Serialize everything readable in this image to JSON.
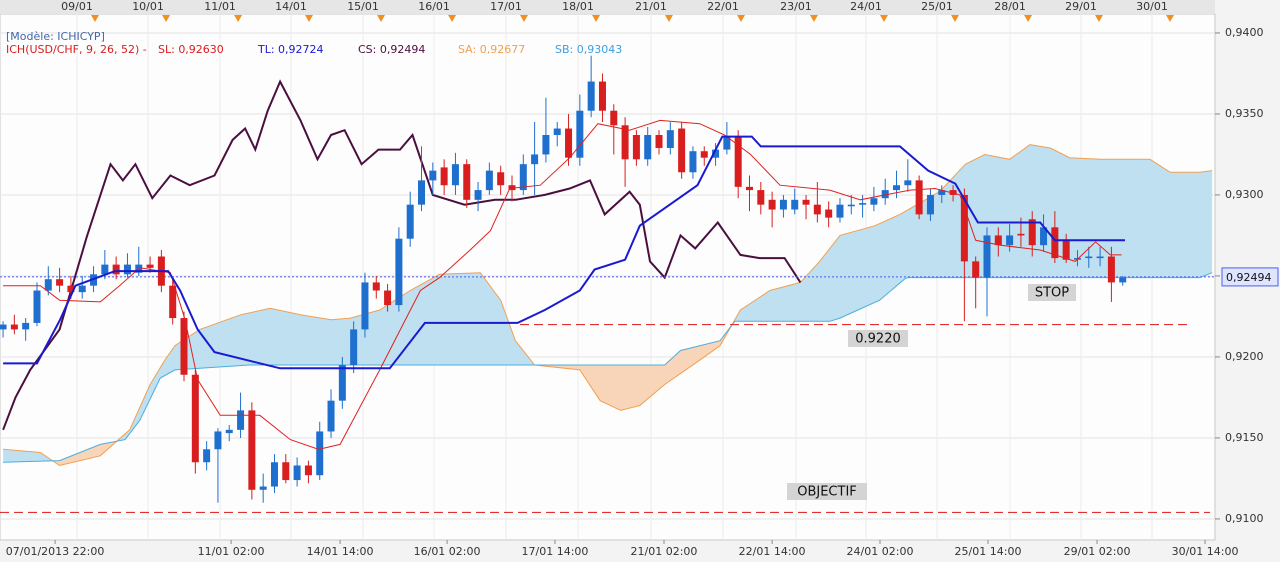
{
  "chart_data": {
    "type": "candlestick",
    "model": "[Modèle: ICHICYP]",
    "indicator": "ICH(USD/CHF, 9, 26, 52) -",
    "readouts": [
      {
        "label": "SL: 0,92630",
        "color": "#d81e1e"
      },
      {
        "label": "TL: 0,92724",
        "color": "#1a1ad0"
      },
      {
        "label": "CS: 0,92494",
        "color": "#4a0f3f"
      },
      {
        "label": "SA: 0,92677",
        "color": "#f0a050"
      },
      {
        "label": "SB: 0,93043",
        "color": "#3aa0e0"
      }
    ],
    "xlim": [
      -0.27,
      107.16
    ],
    "ylim": [
      0.9087,
      0.94117
    ],
    "yticks": [
      {
        "value": 0.94,
        "label": "0,9400"
      },
      {
        "value": 0.935,
        "label": "0,9350"
      },
      {
        "value": 0.93,
        "label": "0,9300"
      },
      {
        "value": 0.925,
        "label": "0,9250"
      },
      {
        "value": 0.92,
        "label": "0,9200"
      },
      {
        "value": 0.915,
        "label": "0,9150"
      },
      {
        "value": 0.91,
        "label": "0,9100"
      }
    ],
    "xticks": [
      {
        "value": 4.6,
        "label": "07/01/2013 22:00"
      },
      {
        "value": 20.16,
        "label": "11/01 02:00"
      },
      {
        "value": 29.8,
        "label": "14/01 14:00"
      },
      {
        "value": 39.26,
        "label": "16/01 02:00"
      },
      {
        "value": 48.8,
        "label": "17/01 14:00"
      },
      {
        "value": 58.44,
        "label": "21/01 02:00"
      },
      {
        "value": 68.0,
        "label": "22/01 14:00"
      },
      {
        "value": 77.54,
        "label": "24/01 02:00"
      },
      {
        "value": 87.09,
        "label": "25/01 14:00"
      },
      {
        "value": 96.73,
        "label": "29/01 02:00"
      },
      {
        "value": 106.28,
        "label": "30/01 14:00"
      }
    ],
    "x2ticks": [
      {
        "value": 6.54,
        "label": "09/01"
      },
      {
        "value": 12.82,
        "label": "10/01"
      },
      {
        "value": 19.19,
        "label": "11/01"
      },
      {
        "value": 25.46,
        "label": "14/01"
      },
      {
        "value": 31.83,
        "label": "15/01"
      },
      {
        "value": 38.11,
        "label": "16/01"
      },
      {
        "value": 44.47,
        "label": "17/01"
      },
      {
        "value": 50.84,
        "label": "18/01"
      },
      {
        "value": 57.29,
        "label": "21/01"
      },
      {
        "value": 63.66,
        "label": "22/01"
      },
      {
        "value": 70.11,
        "label": "23/01"
      },
      {
        "value": 76.3,
        "label": "24/01"
      },
      {
        "value": 82.58,
        "label": "25/01"
      },
      {
        "value": 89.04,
        "label": "28/01"
      },
      {
        "value": 95.31,
        "label": "29/01"
      },
      {
        "value": 101.59,
        "label": "30/01"
      }
    ],
    "grid": true,
    "up_color": "#1f6fcf",
    "down_color": "#d81e1e",
    "x": [
      0,
      1,
      2,
      3,
      4,
      5,
      6,
      7,
      8,
      9,
      10,
      11,
      12,
      13,
      14,
      15,
      16,
      17,
      18,
      19,
      20,
      21,
      22,
      23,
      24,
      25,
      26,
      27,
      28,
      29,
      30,
      31,
      32,
      33,
      34,
      35,
      36,
      37,
      38,
      39,
      40,
      41,
      42,
      43,
      44,
      45,
      46,
      47,
      48,
      49,
      50,
      51,
      52,
      53,
      54,
      55,
      56,
      57,
      58,
      59,
      60,
      61,
      62,
      63,
      64,
      65,
      66,
      67,
      68,
      69,
      70,
      71,
      72,
      73,
      74,
      75,
      76,
      77,
      78,
      79,
      80,
      81,
      82,
      83,
      84,
      85,
      86,
      87,
      88,
      89,
      90,
      91,
      92,
      93,
      94,
      95,
      96,
      97,
      98,
      99
    ],
    "ohlc": [
      [
        0.9217,
        0.9222,
        0.9212,
        0.922
      ],
      [
        0.922,
        0.9226,
        0.9214,
        0.9217
      ],
      [
        0.9217,
        0.9224,
        0.921,
        0.9221
      ],
      [
        0.9221,
        0.9246,
        0.9219,
        0.9241
      ],
      [
        0.9241,
        0.9256,
        0.9238,
        0.9248
      ],
      [
        0.9248,
        0.9255,
        0.924,
        0.9244
      ],
      [
        0.9244,
        0.925,
        0.9236,
        0.924
      ],
      [
        0.924,
        0.925,
        0.9236,
        0.9244
      ],
      [
        0.9244,
        0.9256,
        0.924,
        0.9251
      ],
      [
        0.9251,
        0.9266,
        0.9248,
        0.9257
      ],
      [
        0.9257,
        0.9262,
        0.9248,
        0.9251
      ],
      [
        0.9251,
        0.9264,
        0.9249,
        0.9257
      ],
      [
        0.9252,
        0.9268,
        0.925,
        0.9257
      ],
      [
        0.9257,
        0.9262,
        0.9252,
        0.9255
      ],
      [
        0.9262,
        0.9266,
        0.924,
        0.9244
      ],
      [
        0.9244,
        0.9248,
        0.922,
        0.9224
      ],
      [
        0.9224,
        0.9228,
        0.9185,
        0.9189
      ],
      [
        0.9189,
        0.9192,
        0.9128,
        0.9135
      ],
      [
        0.9135,
        0.9148,
        0.913,
        0.9143
      ],
      [
        0.9143,
        0.9156,
        0.911,
        0.9154
      ],
      [
        0.9153,
        0.9158,
        0.9148,
        0.9155
      ],
      [
        0.9155,
        0.9178,
        0.915,
        0.9167
      ],
      [
        0.9167,
        0.9172,
        0.9112,
        0.9118
      ],
      [
        0.9118,
        0.9128,
        0.911,
        0.912
      ],
      [
        0.912,
        0.914,
        0.9116,
        0.9135
      ],
      [
        0.9135,
        0.914,
        0.9122,
        0.9124
      ],
      [
        0.9124,
        0.9138,
        0.912,
        0.9133
      ],
      [
        0.9133,
        0.9136,
        0.9122,
        0.9127
      ],
      [
        0.9127,
        0.916,
        0.9124,
        0.9154
      ],
      [
        0.9154,
        0.918,
        0.915,
        0.9173
      ],
      [
        0.9173,
        0.92,
        0.9168,
        0.9195
      ],
      [
        0.9195,
        0.9222,
        0.919,
        0.9217
      ],
      [
        0.9217,
        0.9252,
        0.9212,
        0.9246
      ],
      [
        0.9246,
        0.925,
        0.9236,
        0.9241
      ],
      [
        0.9241,
        0.9245,
        0.9228,
        0.9232
      ],
      [
        0.9232,
        0.928,
        0.9228,
        0.9273
      ],
      [
        0.9273,
        0.9302,
        0.9268,
        0.9294
      ],
      [
        0.9294,
        0.933,
        0.929,
        0.9309
      ],
      [
        0.9309,
        0.932,
        0.93,
        0.9315
      ],
      [
        0.9317,
        0.9322,
        0.93,
        0.9306
      ],
      [
        0.9306,
        0.9326,
        0.93,
        0.9319
      ],
      [
        0.9319,
        0.9322,
        0.9292,
        0.9297
      ],
      [
        0.9297,
        0.9308,
        0.929,
        0.9303
      ],
      [
        0.9303,
        0.932,
        0.93,
        0.9315
      ],
      [
        0.9314,
        0.9318,
        0.93,
        0.9306
      ],
      [
        0.9306,
        0.9312,
        0.9296,
        0.9303
      ],
      [
        0.9303,
        0.9325,
        0.93,
        0.9319
      ],
      [
        0.9319,
        0.9345,
        0.93,
        0.9325
      ],
      [
        0.9325,
        0.936,
        0.932,
        0.9337
      ],
      [
        0.9337,
        0.9345,
        0.933,
        0.9341
      ],
      [
        0.9341,
        0.935,
        0.9318,
        0.9323
      ],
      [
        0.9323,
        0.9362,
        0.9318,
        0.9352
      ],
      [
        0.9352,
        0.9386,
        0.9348,
        0.937
      ],
      [
        0.937,
        0.9375,
        0.9345,
        0.9352
      ],
      [
        0.9352,
        0.9356,
        0.9325,
        0.9343
      ],
      [
        0.9343,
        0.9348,
        0.9305,
        0.9322
      ],
      [
        0.9337,
        0.934,
        0.9318,
        0.9322
      ],
      [
        0.9322,
        0.9342,
        0.9318,
        0.9337
      ],
      [
        0.9337,
        0.934,
        0.9325,
        0.9329
      ],
      [
        0.9329,
        0.9345,
        0.9325,
        0.934
      ],
      [
        0.9341,
        0.9345,
        0.931,
        0.9314
      ],
      [
        0.9314,
        0.933,
        0.931,
        0.9327
      ],
      [
        0.9327,
        0.933,
        0.9318,
        0.9323
      ],
      [
        0.9323,
        0.9332,
        0.9318,
        0.9328
      ],
      [
        0.9328,
        0.9345,
        0.9325,
        0.9336
      ],
      [
        0.9336,
        0.934,
        0.9298,
        0.9305
      ],
      [
        0.9305,
        0.9312,
        0.929,
        0.9303
      ],
      [
        0.9303,
        0.9308,
        0.9288,
        0.9294
      ],
      [
        0.9297,
        0.9302,
        0.928,
        0.9291
      ],
      [
        0.9291,
        0.93,
        0.9286,
        0.9297
      ],
      [
        0.9291,
        0.9304,
        0.9288,
        0.9297
      ],
      [
        0.9297,
        0.93,
        0.9285,
        0.9294
      ],
      [
        0.9294,
        0.9308,
        0.9283,
        0.9288
      ],
      [
        0.9291,
        0.9296,
        0.928,
        0.9286
      ],
      [
        0.9286,
        0.9298,
        0.9283,
        0.9294
      ],
      [
        0.9293,
        0.93,
        0.9288,
        0.9294
      ],
      [
        0.9294,
        0.93,
        0.9286,
        0.9295
      ],
      [
        0.9294,
        0.9305,
        0.929,
        0.9298
      ],
      [
        0.9298,
        0.931,
        0.9294,
        0.9303
      ],
      [
        0.9303,
        0.9315,
        0.9298,
        0.9306
      ],
      [
        0.9306,
        0.9322,
        0.9302,
        0.9309
      ],
      [
        0.9309,
        0.9312,
        0.9285,
        0.9288
      ],
      [
        0.9288,
        0.9304,
        0.9284,
        0.93
      ],
      [
        0.93,
        0.9306,
        0.9295,
        0.9303
      ],
      [
        0.9303,
        0.9306,
        0.9296,
        0.93
      ],
      [
        0.93,
        0.9304,
        0.9222,
        0.9259
      ],
      [
        0.9259,
        0.9262,
        0.923,
        0.9249
      ],
      [
        0.9249,
        0.928,
        0.9225,
        0.9275
      ],
      [
        0.9275,
        0.928,
        0.9262,
        0.9269
      ],
      [
        0.9269,
        0.9282,
        0.9265,
        0.9275
      ],
      [
        0.9276,
        0.9286,
        0.9268,
        0.9275
      ],
      [
        0.9285,
        0.929,
        0.9262,
        0.9269
      ],
      [
        0.9269,
        0.9288,
        0.9265,
        0.928
      ],
      [
        0.928,
        0.929,
        0.9258,
        0.9261
      ],
      [
        0.9272,
        0.9276,
        0.9258,
        0.926
      ],
      [
        0.926,
        0.9266,
        0.9256,
        0.9261
      ],
      [
        0.9261,
        0.9268,
        0.9255,
        0.9262
      ],
      [
        0.9261,
        0.9268,
        0.9256,
        0.9262
      ],
      [
        0.9262,
        0.9268,
        0.9234,
        0.9246
      ],
      [
        0.9246,
        0.925,
        0.9244,
        0.9249
      ]
    ],
    "overlays": [
      {
        "color": "#f0a050",
        "x": [
          0,
          3.3,
          5,
          8.6,
          11.2,
          13,
          14.3,
          15.2,
          17.4,
          21,
          23.6,
          26.3,
          29,
          30.7,
          33.3,
          36,
          38.6,
          42.2,
          44,
          45.3,
          47,
          51,
          52.8,
          54.6,
          56.3,
          58.5,
          61.6,
          63.4,
          65.2,
          67.8,
          70.5,
          72.2,
          74,
          77.1,
          79.3,
          82.8,
          85.1,
          86.8,
          89,
          90.8,
          92.6,
          94.3,
          97,
          101.4,
          103.2,
          105.8,
          106.9
        ],
        "values": [
          0.9143,
          0.9141,
          0.9133,
          0.9139,
          0.9155,
          0.9183,
          0.9198,
          0.9207,
          0.9217,
          0.9226,
          0.923,
          0.9226,
          0.9223,
          0.9224,
          0.9229,
          0.9241,
          0.9251,
          0.9252,
          0.9235,
          0.921,
          0.9195,
          0.9192,
          0.9173,
          0.9167,
          0.917,
          0.9183,
          0.9198,
          0.9207,
          0.9229,
          0.9241,
          0.9246,
          0.9259,
          0.9275,
          0.9281,
          0.9288,
          0.9302,
          0.9319,
          0.9325,
          0.9322,
          0.9331,
          0.9329,
          0.9323,
          0.9322,
          0.9322,
          0.9314,
          0.9314,
          0.9315
        ]
      },
      {
        "color": "#4aaee0",
        "x": [
          0,
          5,
          8.6,
          10.8,
          12.1,
          13.9,
          15.2,
          17.4,
          21.8,
          46.6,
          58.5,
          59.9,
          63.4,
          64.7,
          73.1,
          74,
          77.5,
          79.7,
          80,
          105.8,
          106.9
        ],
        "values": [
          0.9135,
          0.9136,
          0.9146,
          0.9149,
          0.9161,
          0.9187,
          0.9192,
          0.9193,
          0.9195,
          0.9195,
          0.9195,
          0.9204,
          0.921,
          0.9222,
          0.9222,
          0.9224,
          0.9235,
          0.9248,
          0.9249,
          0.9249,
          0.9252
        ]
      },
      {
        "color": "#4a0f3f",
        "x": [
          0,
          1.1,
          2.4,
          5,
          7.4,
          9.5,
          10.6,
          11.7,
          13.2,
          14.8,
          16.5,
          18.7,
          20.3,
          21.4,
          22.3,
          23.4,
          24.5,
          26.3,
          27.8,
          29,
          30.2,
          31.7,
          33.2,
          35.1,
          36.2,
          38,
          40.8,
          43.5,
          45.3,
          47.9,
          50.1,
          51.9,
          53.2,
          55.4,
          56.3,
          57.2,
          58.5,
          59.9,
          61.2,
          63.2,
          65.2,
          66.9,
          69.1,
          70.5
        ],
        "values": [
          0.9155,
          0.9175,
          0.9192,
          0.9217,
          0.9274,
          0.9319,
          0.9309,
          0.9319,
          0.9298,
          0.9312,
          0.9306,
          0.9312,
          0.9334,
          0.9341,
          0.9328,
          0.9352,
          0.937,
          0.9346,
          0.9322,
          0.9337,
          0.934,
          0.9319,
          0.9328,
          0.9328,
          0.9337,
          0.93,
          0.9294,
          0.9297,
          0.9297,
          0.93,
          0.9304,
          0.9309,
          0.9288,
          0.9302,
          0.9294,
          0.9259,
          0.9249,
          0.9275,
          0.9267,
          0.9283,
          0.9263,
          0.9261,
          0.9261,
          0.9246
        ]
      },
      {
        "color": "#e02020",
        "x": [
          0,
          3.3,
          5,
          8.6,
          10.3,
          12.1,
          14.8,
          16.1,
          17.2,
          19.2,
          22.7,
          25.4,
          27.9,
          29.8,
          33.3,
          36.9,
          38.6,
          41.3,
          43.1,
          44.8,
          47.5,
          50.1,
          52.6,
          55.4,
          58.1,
          61.6,
          63.8,
          66.1,
          68.7,
          73.1,
          75.8,
          78,
          80.2,
          82.4,
          84.6,
          86,
          88.2,
          91.7,
          94.8,
          96.6,
          97.9,
          98.9
        ],
        "values": [
          0.9244,
          0.9244,
          0.9235,
          0.9234,
          0.9244,
          0.9255,
          0.9252,
          0.9223,
          0.9186,
          0.9164,
          0.9164,
          0.9149,
          0.9143,
          0.9146,
          0.9192,
          0.9241,
          0.9249,
          0.9266,
          0.9278,
          0.9304,
          0.9306,
          0.9323,
          0.9344,
          0.934,
          0.9346,
          0.9344,
          0.9337,
          0.9325,
          0.9306,
          0.9303,
          0.9297,
          0.93,
          0.9303,
          0.9304,
          0.93,
          0.9272,
          0.9269,
          0.9266,
          0.9259,
          0.9271,
          0.9263,
          0.9263
        ]
      },
      {
        "color": "#1a1ad0",
        "x": [
          0,
          3,
          5.04,
          6.4,
          9.9,
          14.6,
          15.65,
          17.2,
          18.7,
          24.5,
          34.2,
          37.3,
          45.5,
          47.9,
          51,
          52.3,
          55,
          56.3,
          61.4,
          63.6,
          66.2,
          67,
          79.3,
          81.8,
          84.2,
          86.2,
          91.7,
          93,
          99.2
        ],
        "values": [
          0.9196,
          0.9196,
          0.9223,
          0.9244,
          0.9253,
          0.9253,
          0.9241,
          0.9217,
          0.9203,
          0.9193,
          0.9193,
          0.9221,
          0.9221,
          0.9229,
          0.9241,
          0.9254,
          0.926,
          0.9281,
          0.9306,
          0.9336,
          0.9336,
          0.933,
          0.933,
          0.9315,
          0.9307,
          0.9283,
          0.9283,
          0.9272,
          0.9272
        ]
      }
    ],
    "levels": [
      {
        "value": 0.922,
        "label": "0.9220",
        "color": "#e03030"
      },
      {
        "value": 0.9104,
        "label": "OBJECTIF",
        "color": "#e03030"
      }
    ],
    "last": {
      "value": 0.92494,
      "label": "0,92494",
      "color": "#4a5cf0"
    },
    "annotations": [
      "STOP"
    ]
  }
}
